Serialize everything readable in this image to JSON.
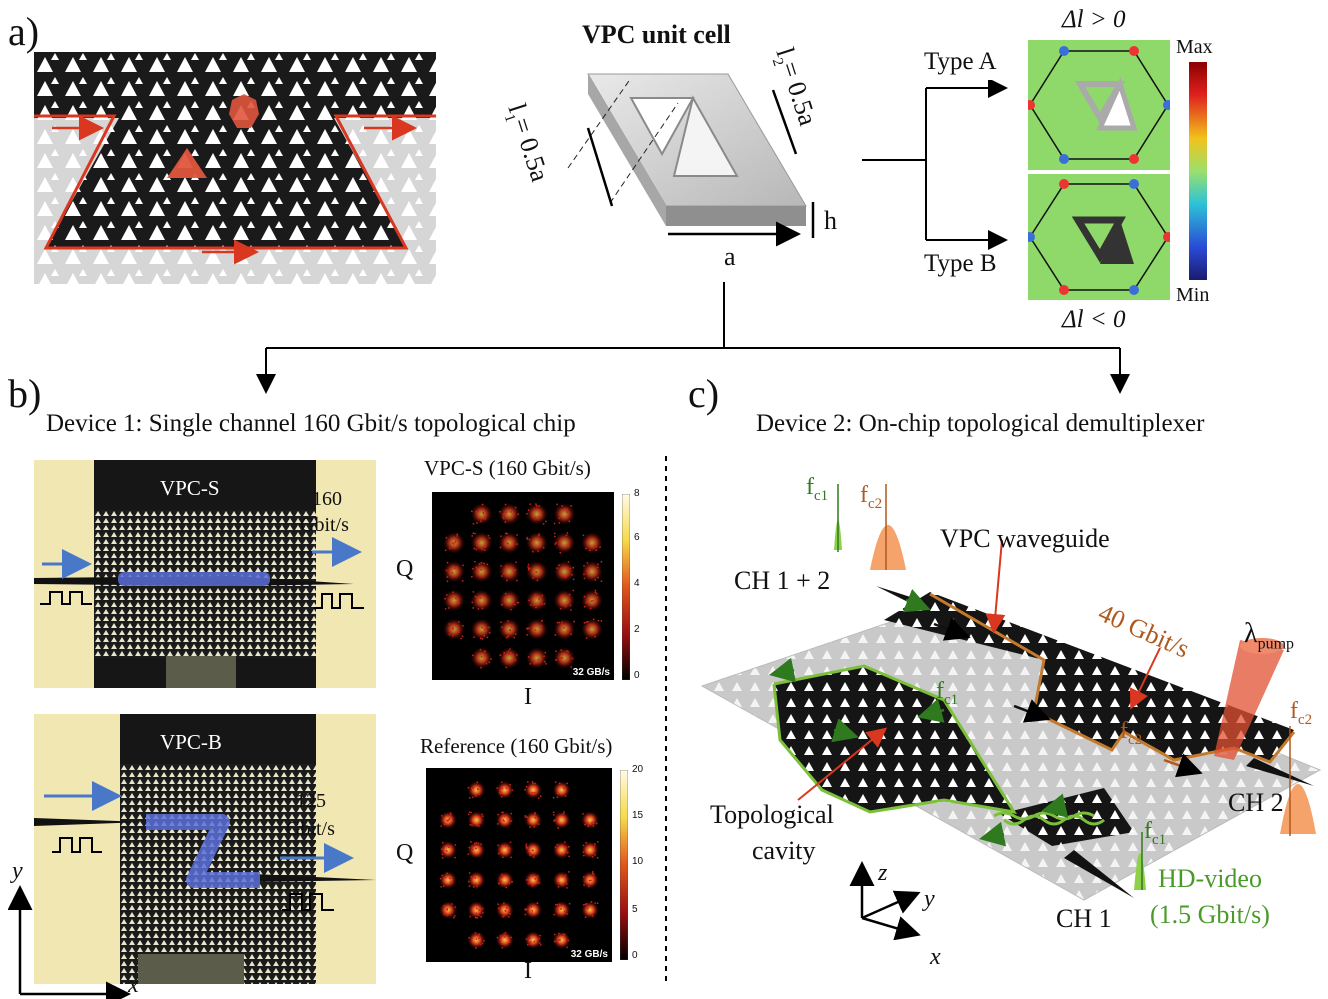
{
  "panels": {
    "a": "a)",
    "b": "b)",
    "c": "c)"
  },
  "unit_cell": {
    "title": "VPC unit cell",
    "l1": "l",
    "l1_sub": "1",
    "l1_val": "= 0.5a",
    "l2": "l",
    "l2_sub": "2",
    "l2_val": "= 0.5a",
    "a": "a",
    "h": "h"
  },
  "field_maps": {
    "type_a": "Type A",
    "type_b": "Type B",
    "delta_pos": "Δl > 0",
    "delta_neg": "Δl < 0",
    "max": "Max",
    "min": "Min"
  },
  "device1": {
    "title": "Device 1: Single channel 160 Gbit/s topological chip",
    "chip_s": {
      "label": "VPC-S",
      "rate_value": "160",
      "rate_unit": "Gbit/s"
    },
    "chip_b": {
      "label": "VPC-B",
      "rate_value": "125",
      "rate_unit": "Gbit/s"
    },
    "axis_y": "y",
    "axis_x": "x",
    "constellations": [
      {
        "title": "VPC-S (160 Gbit/s)",
        "tag": "32 GB/s",
        "ticks": [
          "8",
          "6",
          "4",
          "2",
          "0"
        ],
        "ylabel": "Q",
        "xlabel": "I"
      },
      {
        "title": "Reference (160 Gbit/s)",
        "tag": "32 GB/s",
        "ticks": [
          "20",
          "15",
          "10",
          "5",
          "0"
        ],
        "ylabel": "Q",
        "xlabel": "I"
      }
    ]
  },
  "device2": {
    "title": "Device 2: On-chip topological demultiplexer",
    "fc1": "f",
    "fc1_sub": "c1",
    "fc2": "f",
    "fc2_sub": "c2",
    "ch12": "CH 1 + 2",
    "waveguide": "VPC waveguide",
    "rate": "40 Gbit/s",
    "pump": "λ",
    "pump_sub": "pump",
    "ch2": "CH 2",
    "ch1": "CH 1",
    "cavity_line1": "Topological",
    "cavity_line2": "cavity",
    "video_line1": "HD-video",
    "video_line2": "(1.5 Gbit/s)",
    "axis_z": "z",
    "axis_y": "y",
    "axis_x": "x"
  },
  "colors": {
    "red": "#d9371f",
    "blue": "#4a78c9",
    "green": "#5d9a2e",
    "brown": "#b1581b",
    "orange": "#f5a36b"
  }
}
